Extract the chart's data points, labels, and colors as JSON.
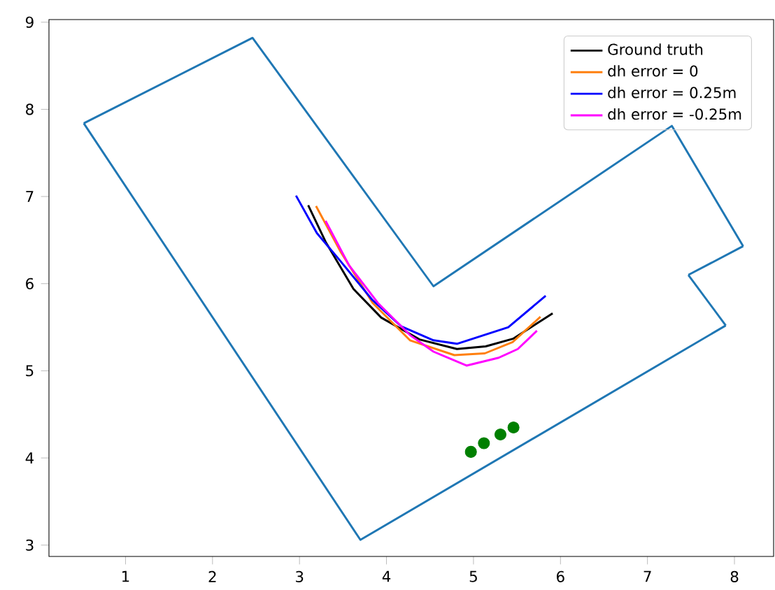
{
  "chart_data": {
    "type": "line",
    "xlim": [
      0.12,
      8.45
    ],
    "ylim": [
      2.87,
      9.03
    ],
    "xticks": [
      1,
      2,
      3,
      4,
      5,
      6,
      7,
      8
    ],
    "yticks": [
      3,
      4,
      5,
      6,
      7,
      8,
      9
    ],
    "grid": false,
    "legend": "top right",
    "series": [
      {
        "color": "#1f77b4",
        "x": [
          0.52,
          2.46,
          4.54,
          7.28,
          8.1
        ],
        "values": [
          7.84,
          8.82,
          5.97,
          7.81,
          6.43
        ]
      },
      {
        "color": "#1f77b4",
        "x": [
          8.1,
          7.47
        ],
        "values": [
          6.43,
          6.1
        ]
      },
      {
        "color": "#1f77b4",
        "x": [
          7.47,
          7.9
        ],
        "values": [
          6.1,
          5.52
        ]
      },
      {
        "color": "#1f77b4",
        "x": [
          7.9,
          3.7,
          0.52
        ],
        "values": [
          5.52,
          3.06,
          7.84
        ]
      },
      {
        "name": "Ground truth",
        "color": "#000000",
        "x": [
          3.1,
          3.3,
          3.62,
          3.94,
          4.38,
          4.81,
          5.14,
          5.46,
          5.91
        ],
        "values": [
          6.9,
          6.48,
          5.94,
          5.61,
          5.36,
          5.25,
          5.28,
          5.37,
          5.66
        ]
      },
      {
        "name": "dh error = 0",
        "color": "#ff7f0e",
        "x": [
          3.19,
          3.47,
          3.84,
          4.27,
          4.78,
          5.13,
          5.45,
          5.77
        ],
        "values": [
          6.89,
          6.37,
          5.78,
          5.35,
          5.18,
          5.2,
          5.33,
          5.62
        ]
      },
      {
        "name": "dh error = 0.25m",
        "color": "#0000ff",
        "x": [
          2.96,
          3.2,
          3.47,
          3.84,
          4.17,
          4.54,
          4.81,
          5.4,
          5.83
        ],
        "values": [
          7.01,
          6.58,
          6.26,
          5.81,
          5.51,
          5.35,
          5.31,
          5.5,
          5.86
        ]
      },
      {
        "name": "dh error = -0.25m",
        "color": "#ff00ff",
        "x": [
          3.3,
          3.57,
          3.9,
          4.27,
          4.54,
          4.92,
          5.29,
          5.51,
          5.73
        ],
        "values": [
          6.72,
          6.21,
          5.78,
          5.41,
          5.22,
          5.06,
          5.15,
          5.25,
          5.46
        ]
      },
      {
        "type": "scatter",
        "marker": "circle",
        "color": "#008000",
        "x": [
          4.97,
          5.12,
          5.31,
          5.46
        ],
        "values": [
          4.07,
          4.17,
          4.27,
          4.35
        ]
      }
    ]
  }
}
